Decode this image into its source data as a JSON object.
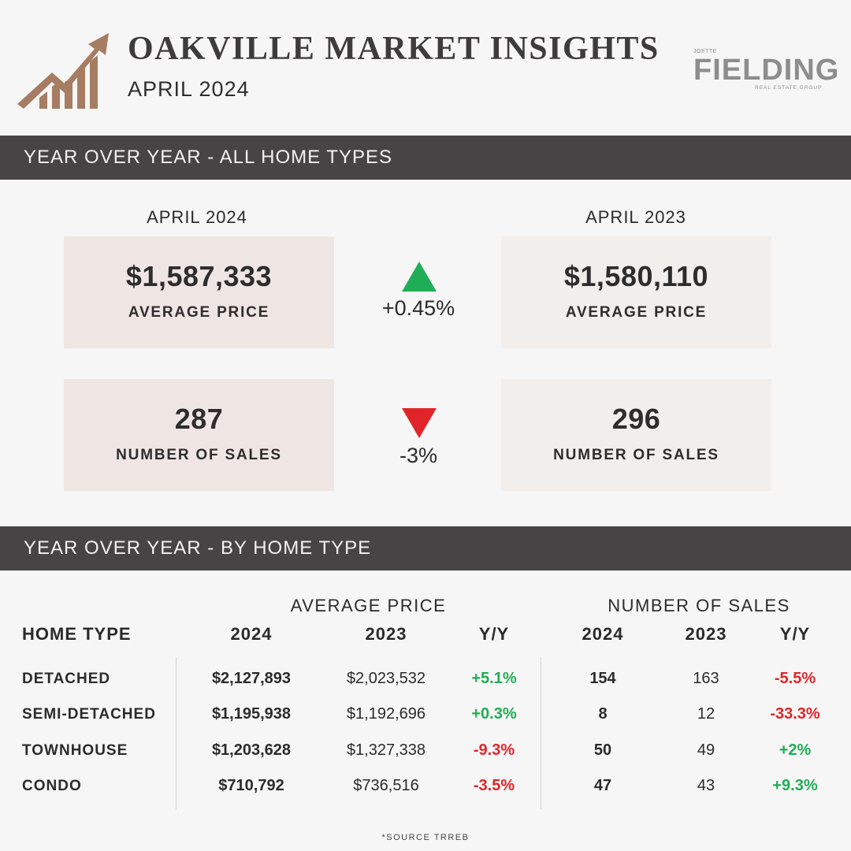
{
  "header": {
    "title": "OAKVILLE MARKET INSIGHTS",
    "subtitle": "APRIL 2024",
    "brand_top": "JOETTE",
    "brand_name": "FIELDING",
    "brand_bottom": "REAL ESTATE GROUP"
  },
  "colors": {
    "accent": "#a67c62",
    "bar": "#464444",
    "card_current": "#efe6e3",
    "card_previous": "#f1eeec",
    "positive": "#1fae55",
    "negative": "#e0252a"
  },
  "yoy_all": {
    "section_title": "YEAR OVER YEAR - ALL HOME TYPES",
    "current_period": "APRIL 2024",
    "previous_period": "APRIL 2023",
    "avg_price": {
      "current": "$1,587,333",
      "previous": "$1,580,110",
      "label": "AVERAGE PRICE",
      "change": "+0.45%",
      "direction_icon": "triangle-up-icon"
    },
    "sales": {
      "current": "287",
      "previous": "296",
      "label": "NUMBER OF SALES",
      "change": "-3%",
      "direction_icon": "triangle-down-icon"
    }
  },
  "by_type": {
    "section_title": "YEAR OVER YEAR - BY HOME TYPE",
    "avg_price_header": "AVERAGE PRICE",
    "sales_header": "NUMBER OF SALES",
    "columns": {
      "home_type": "HOME TYPE",
      "y2024": "2024",
      "y2023": "2023",
      "yy": "Y/Y"
    },
    "rows": [
      {
        "type": "DETACHED",
        "price_2024": "$2,127,893",
        "price_2023": "$2,023,532",
        "price_yy": "+5.1%",
        "sales_2024": "154",
        "sales_2023": "163",
        "sales_yy": "-5.5%"
      },
      {
        "type": "SEMI-DETACHED",
        "price_2024": "$1,195,938",
        "price_2023": "$1,192,696",
        "price_yy": "+0.3%",
        "sales_2024": "8",
        "sales_2023": "12",
        "sales_yy": "-33.3%"
      },
      {
        "type": "TOWNHOUSE",
        "price_2024": "$1,203,628",
        "price_2023": "$1,327,338",
        "price_yy": "-9.3%",
        "sales_2024": "50",
        "sales_2023": "49",
        "sales_yy": "+2%"
      },
      {
        "type": "CONDO",
        "price_2024": "$710,792",
        "price_2023": "$736,516",
        "price_yy": "-3.5%",
        "sales_2024": "47",
        "sales_2023": "43",
        "sales_yy": "+9.3%"
      }
    ]
  },
  "footer": {
    "source": "*SOURCE TRREB"
  }
}
